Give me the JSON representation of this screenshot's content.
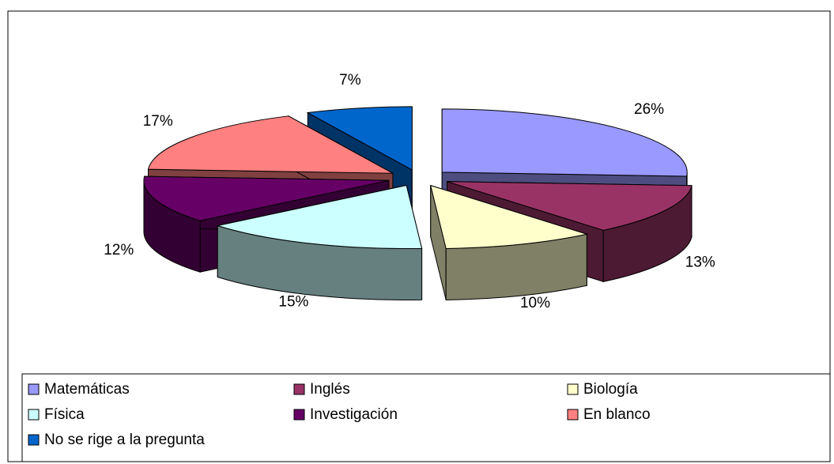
{
  "chart_data": {
    "type": "pie3d",
    "categories": [
      "Matemáticas",
      "Inglés",
      "Biología",
      "Física",
      "Investigación",
      "En blanco",
      "No se rige a la pregunta"
    ],
    "values": [
      26,
      13,
      10,
      15,
      12,
      17,
      7
    ],
    "value_labels": [
      "26%",
      "13%",
      "10%",
      "15%",
      "12%",
      "17%",
      "7%"
    ],
    "colors": [
      "#9999ff",
      "#993366",
      "#ffffcc",
      "#ccffff",
      "#660066",
      "#ff8080",
      "#0066cc"
    ],
    "legend": "bottom"
  }
}
